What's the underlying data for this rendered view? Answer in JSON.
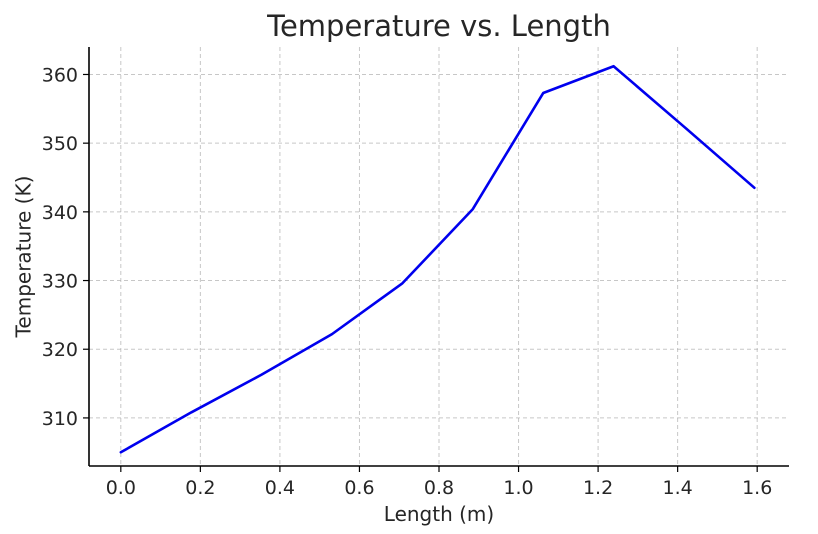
{
  "chart_data": {
    "type": "line",
    "title": "Temperature vs. Length",
    "xlabel": "Length (m)",
    "ylabel": "Temperature (K)",
    "xlim": [
      -0.08,
      1.68
    ],
    "ylim": [
      303.0,
      364.0
    ],
    "xticks": [
      0.0,
      0.2,
      0.4,
      0.6,
      0.8,
      1.0,
      1.2,
      1.4,
      1.6
    ],
    "xtick_labels": [
      "0.0",
      "0.2",
      "0.4",
      "0.6",
      "0.8",
      "1.0",
      "1.2",
      "1.4",
      "1.6"
    ],
    "yticks": [
      310,
      320,
      330,
      340,
      350,
      360
    ],
    "ytick_labels": [
      "310",
      "320",
      "330",
      "340",
      "350",
      "360"
    ],
    "grid": true,
    "series": [
      {
        "name": "Temperature",
        "color": "#0000ee",
        "x": [
          0.0,
          0.177,
          0.354,
          0.531,
          0.708,
          0.885,
          1.062,
          1.239,
          1.416,
          1.593
        ],
        "y": [
          305.0,
          310.8,
          316.3,
          322.2,
          329.6,
          340.4,
          357.3,
          361.2,
          352.4,
          343.5
        ]
      }
    ]
  }
}
